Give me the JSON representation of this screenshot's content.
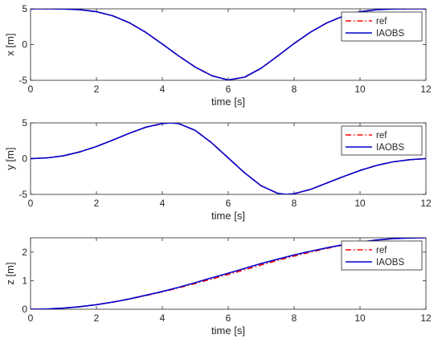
{
  "chart_data": [
    {
      "type": "line",
      "xlabel": "time [s]",
      "ylabel": "x [m]",
      "xlim": [
        0,
        12
      ],
      "ylim": [
        -5,
        5
      ],
      "xticks": [
        "0",
        "2",
        "4",
        "6",
        "8",
        "10",
        "12"
      ],
      "yticks": [
        "-5",
        "0",
        "5"
      ],
      "grid": false,
      "legend_position": "top-right",
      "x": [
        0,
        0.5,
        1,
        1.5,
        2,
        2.5,
        3,
        3.5,
        4,
        4.5,
        5,
        5.5,
        6,
        6.5,
        7,
        7.5,
        8,
        8.5,
        9,
        9.5,
        10,
        10.5,
        11,
        11.5,
        12
      ],
      "series": [
        {
          "name": "ref",
          "color": "#ff0000",
          "style": "dash-dot",
          "values": [
            5,
            5,
            4.98,
            4.88,
            4.6,
            4.02,
            3.05,
            1.7,
            0.08,
            -1.6,
            -3.15,
            -4.35,
            -4.95,
            -4.55,
            -3.3,
            -1.6,
            0.15,
            1.75,
            3.05,
            4.0,
            4.6,
            4.88,
            4.98,
            5,
            5
          ]
        },
        {
          "name": "IAOBS",
          "color": "#0000cd",
          "style": "solid",
          "values": [
            5,
            5,
            4.98,
            4.88,
            4.6,
            4.02,
            3.05,
            1.7,
            0.08,
            -1.6,
            -3.15,
            -4.35,
            -4.95,
            -4.55,
            -3.3,
            -1.6,
            0.15,
            1.75,
            3.05,
            4.0,
            4.6,
            4.88,
            4.98,
            5,
            5
          ]
        }
      ]
    },
    {
      "type": "line",
      "xlabel": "time [s]",
      "ylabel": "y [m]",
      "xlim": [
        0,
        12
      ],
      "ylim": [
        -5,
        5
      ],
      "xticks": [
        "0",
        "2",
        "4",
        "6",
        "8",
        "10",
        "12"
      ],
      "yticks": [
        "-5",
        "0",
        "5"
      ],
      "grid": false,
      "legend_position": "top-right",
      "x": [
        0,
        0.5,
        1,
        1.5,
        2,
        2.5,
        3,
        3.5,
        4,
        4.25,
        4.5,
        5,
        5.5,
        6,
        6.5,
        7,
        7.5,
        7.75,
        8,
        8.5,
        9,
        9.5,
        10,
        10.5,
        11,
        11.5,
        12
      ],
      "series": [
        {
          "name": "ref",
          "color": "#ff0000",
          "style": "dash-dot",
          "values": [
            0,
            0.1,
            0.4,
            0.95,
            1.7,
            2.6,
            3.55,
            4.4,
            4.9,
            5.0,
            4.9,
            3.95,
            2.2,
            0.1,
            -2.0,
            -3.8,
            -4.85,
            -5.0,
            -4.9,
            -4.3,
            -3.4,
            -2.5,
            -1.65,
            -0.95,
            -0.45,
            -0.15,
            0
          ]
        },
        {
          "name": "IAOBS",
          "color": "#0000cd",
          "style": "solid",
          "values": [
            0,
            0.1,
            0.4,
            0.95,
            1.7,
            2.6,
            3.55,
            4.4,
            4.9,
            5.0,
            4.9,
            3.95,
            2.2,
            0.1,
            -2.0,
            -3.8,
            -4.85,
            -5.0,
            -4.9,
            -4.3,
            -3.4,
            -2.5,
            -1.65,
            -0.95,
            -0.45,
            -0.15,
            0
          ]
        }
      ]
    },
    {
      "type": "line",
      "xlabel": "time [s]",
      "ylabel": "z [m]",
      "xlim": [
        0,
        12
      ],
      "ylim": [
        0,
        2.5
      ],
      "xticks": [
        "0",
        "2",
        "4",
        "6",
        "8",
        "10",
        "12"
      ],
      "yticks": [
        "0",
        "1",
        "2"
      ],
      "grid": false,
      "legend_position": "top-right",
      "x": [
        0,
        0.5,
        1,
        1.5,
        2,
        2.5,
        3,
        3.5,
        4,
        4.5,
        5,
        5.5,
        6,
        6.5,
        7,
        7.5,
        8,
        8.5,
        9,
        9.5,
        10,
        10.5,
        11,
        11.5,
        12
      ],
      "series": [
        {
          "name": "ref",
          "color": "#ff0000",
          "style": "dash-dot",
          "values": [
            0,
            0.01,
            0.04,
            0.09,
            0.16,
            0.25,
            0.36,
            0.48,
            0.61,
            0.75,
            0.9,
            1.06,
            1.22,
            1.38,
            1.55,
            1.71,
            1.86,
            2.0,
            2.13,
            2.25,
            2.34,
            2.42,
            2.47,
            2.49,
            2.5
          ]
        },
        {
          "name": "IAOBS",
          "color": "#0000cd",
          "style": "solid",
          "values": [
            0,
            0.01,
            0.04,
            0.09,
            0.16,
            0.25,
            0.36,
            0.49,
            0.62,
            0.77,
            0.93,
            1.1,
            1.26,
            1.43,
            1.6,
            1.75,
            1.9,
            2.03,
            2.15,
            2.26,
            2.35,
            2.42,
            2.47,
            2.49,
            2.5
          ]
        }
      ]
    }
  ]
}
